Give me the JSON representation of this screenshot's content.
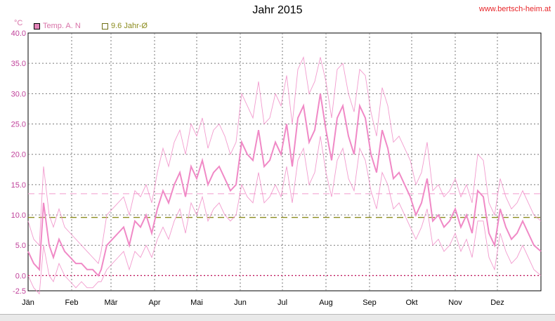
{
  "header": {
    "title": "Jahr 2015",
    "site": "www.bertsch-heim.at",
    "unit": "°C"
  },
  "legend": {
    "temp_label": "Temp. A. N",
    "avg_label": "9.6 Jahr-Ø"
  },
  "colors": {
    "temp": "#f089c6",
    "avg_line": "#8c8c1e",
    "ref_line": "#f3a9d3",
    "zero_line": "#c0105a",
    "grid": "#7a7a7a",
    "y_tick": "#c0409a"
  },
  "chart_data": {
    "type": "line",
    "title": "Jahr 2015",
    "ylabel": "°C",
    "ylim": [
      -2.5,
      40
    ],
    "y_ticks": [
      "-2.5",
      "0.0",
      "5.0",
      "10.0",
      "15.0",
      "20.0",
      "25.0",
      "30.0",
      "35.0",
      "40.0"
    ],
    "x_range": [
      0,
      365
    ],
    "x_tick_labels": [
      "Jän",
      "Feb",
      "Mär",
      "Apr",
      "Mai",
      "Jun",
      "Jul",
      "Aug",
      "Sep",
      "Okt",
      "Nov",
      "Dez"
    ],
    "x_tick_days": [
      0,
      31,
      59,
      90,
      120,
      151,
      181,
      212,
      243,
      273,
      304,
      334
    ],
    "grid": true,
    "legend_position": "top-left",
    "reference_lines": [
      {
        "name": "9.6 Jahr-Ø",
        "y": 9.6
      },
      {
        "y": 13.5
      },
      {
        "y": 0
      }
    ],
    "series": [
      {
        "name": "Temp. A. N",
        "x": [
          0,
          4,
          8,
          11,
          15,
          18,
          22,
          26,
          30,
          34,
          38,
          42,
          46,
          50,
          52,
          56,
          60,
          64,
          68,
          72,
          76,
          80,
          84,
          88,
          92,
          96,
          100,
          104,
          108,
          112,
          116,
          120,
          124,
          128,
          132,
          136,
          140,
          144,
          148,
          152,
          156,
          160,
          164,
          168,
          172,
          176,
          180,
          184,
          188,
          192,
          196,
          200,
          204,
          208,
          212,
          216,
          220,
          224,
          228,
          232,
          236,
          240,
          244,
          248,
          252,
          256,
          260,
          264,
          268,
          272,
          276,
          280,
          284,
          288,
          292,
          296,
          300,
          304,
          308,
          312,
          316,
          320,
          324,
          328,
          332,
          336,
          340,
          344,
          348,
          352,
          356,
          360,
          365
        ],
        "values": [
          4,
          2,
          1,
          12,
          5,
          3,
          6,
          4,
          3,
          2,
          2,
          1,
          1,
          0,
          1,
          5,
          6,
          7,
          8,
          5,
          9,
          8,
          10,
          7,
          11,
          14,
          12,
          15,
          17,
          13,
          18,
          16,
          19,
          15,
          17,
          18,
          16,
          14,
          15,
          22,
          20,
          19,
          24,
          18,
          19,
          22,
          20,
          25,
          18,
          26,
          28,
          22,
          24,
          30,
          24,
          19,
          26,
          28,
          23,
          20,
          28,
          26,
          20,
          17,
          24,
          21,
          16,
          17,
          15,
          13,
          10,
          12,
          16,
          9,
          10,
          8,
          9,
          11,
          8,
          10,
          7,
          14,
          13,
          7,
          5,
          11,
          8,
          6,
          7,
          9,
          7,
          5,
          4
        ],
        "min": [
          0,
          -2,
          -3,
          5,
          0,
          -1,
          2,
          0,
          -1,
          -2,
          -1,
          -2,
          -2,
          -1,
          -1,
          1,
          2,
          3,
          4,
          1,
          4,
          3,
          5,
          3,
          6,
          8,
          6,
          9,
          11,
          7,
          12,
          10,
          13,
          9,
          11,
          12,
          10,
          9,
          10,
          15,
          13,
          12,
          17,
          12,
          13,
          15,
          13,
          18,
          12,
          19,
          21,
          15,
          17,
          23,
          17,
          13,
          19,
          21,
          16,
          14,
          21,
          19,
          14,
          11,
          17,
          15,
          11,
          12,
          10,
          8,
          6,
          8,
          11,
          5,
          6,
          4,
          5,
          7,
          4,
          6,
          3,
          9,
          9,
          3,
          1,
          7,
          4,
          2,
          3,
          5,
          3,
          1,
          0
        ],
        "max": [
          9,
          6,
          5,
          18,
          10,
          8,
          11,
          8,
          7,
          6,
          5,
          4,
          3,
          2,
          4,
          10,
          11,
          12,
          13,
          10,
          14,
          13,
          15,
          12,
          17,
          21,
          18,
          22,
          24,
          20,
          25,
          23,
          26,
          21,
          24,
          25,
          23,
          20,
          22,
          30,
          28,
          26,
          32,
          25,
          26,
          30,
          28,
          33,
          25,
          34,
          36,
          30,
          32,
          36,
          32,
          26,
          34,
          35,
          30,
          27,
          34,
          33,
          27,
          23,
          31,
          28,
          22,
          23,
          21,
          19,
          15,
          17,
          22,
          14,
          15,
          13,
          14,
          16,
          13,
          15,
          12,
          20,
          19,
          12,
          10,
          16,
          13,
          11,
          12,
          14,
          12,
          10,
          9
        ]
      }
    ]
  }
}
